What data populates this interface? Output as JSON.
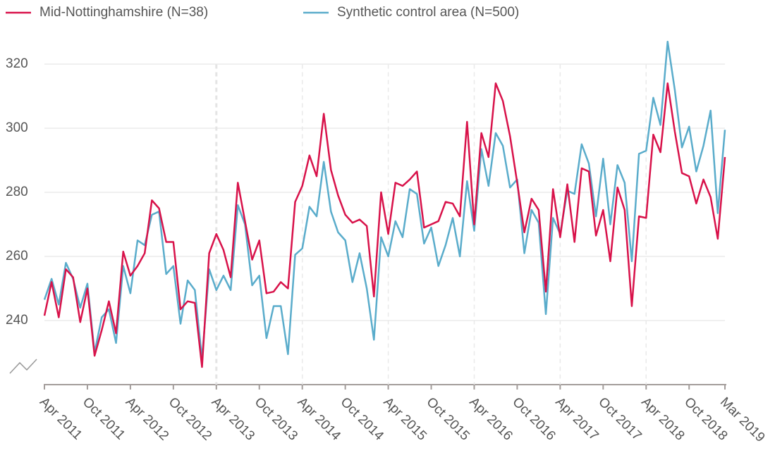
{
  "chart_data": {
    "type": "line",
    "categories": [
      "Apr 2011",
      null,
      null,
      null,
      null,
      null,
      "Oct 2011",
      null,
      null,
      null,
      null,
      null,
      "Apr 2012",
      null,
      null,
      null,
      null,
      null,
      "Oct 2012",
      null,
      null,
      null,
      null,
      null,
      "Apr 2013",
      null,
      null,
      null,
      null,
      null,
      "Oct 2013",
      null,
      null,
      null,
      null,
      null,
      "Apr 2014",
      null,
      null,
      null,
      null,
      null,
      "Oct 2014",
      null,
      null,
      null,
      null,
      null,
      "Apr 2015",
      null,
      null,
      null,
      null,
      null,
      "Oct 2015",
      null,
      null,
      null,
      null,
      null,
      "Apr 2016",
      null,
      null,
      null,
      null,
      null,
      "Oct 2016",
      null,
      null,
      null,
      null,
      null,
      "Apr 2017",
      null,
      null,
      null,
      null,
      null,
      "Oct 2017",
      null,
      null,
      null,
      null,
      null,
      "Apr 2018",
      null,
      null,
      null,
      null,
      null,
      "Oct 2018",
      null,
      null,
      null,
      null,
      "Mar 2019"
    ],
    "series": [
      {
        "name": "Mid-Nottinghamshire (N=38)",
        "color": "#d8124a",
        "values": [
          241.5,
          252,
          241,
          256,
          253.5,
          239.5,
          250,
          229,
          237,
          246,
          236,
          261.5,
          254,
          257,
          261,
          277.5,
          275,
          264.5,
          264.5,
          243.5,
          246,
          245.5,
          225.5,
          261,
          267,
          262,
          253.5,
          283,
          271,
          259,
          265,
          248.5,
          249,
          252,
          250,
          277,
          282,
          291.5,
          285,
          304.5,
          287,
          279,
          273,
          270.5,
          271.5,
          269.5,
          247.5,
          280,
          267,
          283,
          282,
          284,
          286.5,
          269,
          270,
          271,
          277,
          276.5,
          272.5,
          302,
          270,
          298.5,
          291,
          314,
          308.5,
          297.5,
          283,
          267.5,
          278,
          274.5,
          249,
          281,
          266,
          282.5,
          264.5,
          287.5,
          286.5,
          266.5,
          274.5,
          258.5,
          281.5,
          274.5,
          244.5,
          272.5,
          272,
          298,
          292.5,
          314,
          299,
          286,
          285,
          276.5,
          284,
          278.5,
          265.5,
          291
        ]
      },
      {
        "name": "Synthetic control area (N=500)",
        "color": "#5aaccb",
        "values": [
          246.5,
          253,
          245,
          258,
          253,
          244,
          251.5,
          230,
          241,
          243.5,
          233,
          257,
          248.5,
          265,
          263.5,
          273,
          274,
          254.5,
          257,
          239,
          252.5,
          249.5,
          228,
          256,
          249.5,
          254,
          249.5,
          276,
          270,
          251,
          254,
          234.5,
          244.5,
          244.5,
          229.5,
          260.5,
          262.5,
          275.5,
          272.5,
          289.5,
          274,
          267.5,
          265,
          252,
          261,
          250,
          234,
          266,
          260,
          271,
          266,
          281,
          279.5,
          264,
          269,
          257,
          263.5,
          272,
          260,
          283.5,
          268,
          293.5,
          282,
          298.5,
          294.5,
          281.5,
          284,
          261,
          274.5,
          270.5,
          242,
          272,
          267,
          280.5,
          279.5,
          295,
          289,
          272.5,
          290.5,
          270,
          288.5,
          283,
          258.5,
          292,
          293,
          309.5,
          301,
          327,
          312,
          294,
          300.5,
          286.5,
          294.5,
          305.5,
          273.5,
          299.5
        ]
      }
    ],
    "ylim": [
      220,
      330
    ],
    "yticks": [
      240,
      260,
      280,
      300,
      320
    ],
    "grid": true
  }
}
